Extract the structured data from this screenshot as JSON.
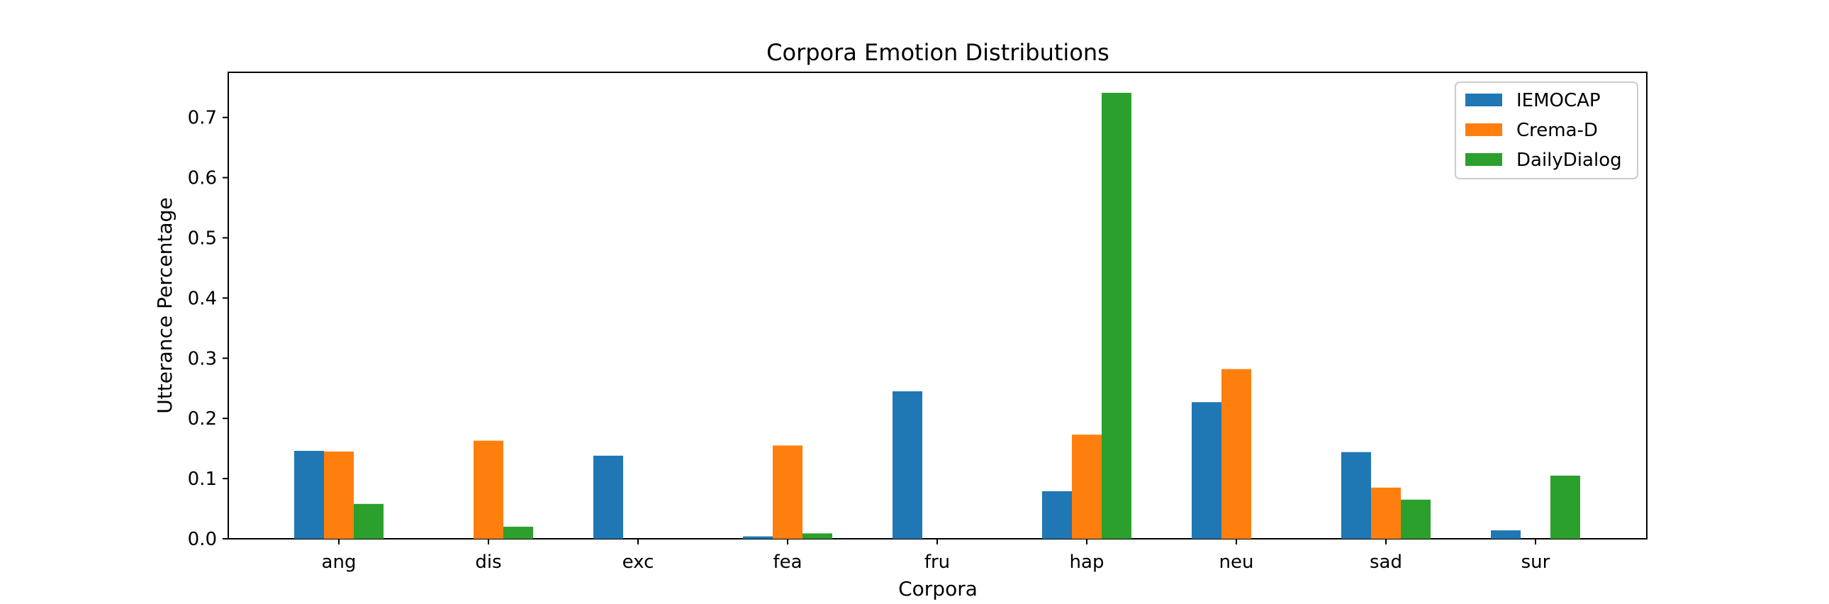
{
  "chart_data": {
    "type": "bar",
    "title": "Corpora Emotion Distributions",
    "xlabel": "Corpora",
    "ylabel": "Utterance Percentage",
    "categories": [
      "ang",
      "dis",
      "exc",
      "fea",
      "fru",
      "hap",
      "neu",
      "sad",
      "sur"
    ],
    "series": [
      {
        "name": "IEMOCAP",
        "color": "#1f77b4",
        "values": [
          0.146,
          0.0,
          0.138,
          0.004,
          0.245,
          0.079,
          0.227,
          0.144,
          0.014
        ]
      },
      {
        "name": "Crema-D",
        "color": "#ff7f0e",
        "values": [
          0.145,
          0.163,
          0.0,
          0.155,
          0.0,
          0.173,
          0.282,
          0.085,
          0.0
        ]
      },
      {
        "name": "DailyDialog",
        "color": "#2ca02c",
        "values": [
          0.058,
          0.02,
          0.0,
          0.009,
          0.0,
          0.741,
          0.0,
          0.065,
          0.105
        ]
      }
    ],
    "ylim": [
      0,
      0.775
    ],
    "yticks": [
      "0.0",
      "0.1",
      "0.2",
      "0.3",
      "0.4",
      "0.5",
      "0.6",
      "0.7"
    ],
    "legend_position": "top-right",
    "grid": false
  }
}
